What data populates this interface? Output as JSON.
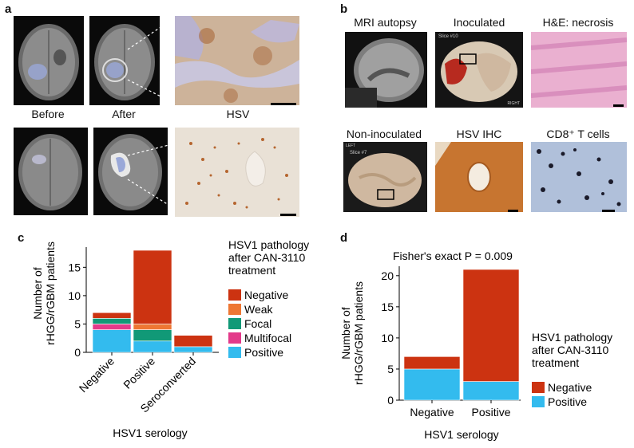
{
  "panel_a": {
    "letter": "a",
    "labels": {
      "before": "Before",
      "after": "After",
      "stain": "HSV"
    }
  },
  "panel_b": {
    "letter": "b",
    "top_labels": [
      "MRI autopsy",
      "Inoculated",
      "H&E: necrosis"
    ],
    "bottom_labels": [
      "Non-inoculated",
      "HSV IHC",
      "CD8⁺ T cells"
    ],
    "slice_text": {
      "inoculated": "Slice #10",
      "inoculated_side": "RIGHT",
      "non_inoculated": "Slice #7",
      "non_inoculated_side": "LEFT"
    }
  },
  "colors": {
    "negative": "#cc3311",
    "weak": "#ee7733",
    "focal": "#119977",
    "multifocal": "#e33a8a",
    "positive": "#33bbee"
  },
  "chart_data": [
    {
      "panel": "c",
      "type": "bar",
      "stacked": true,
      "categories": [
        "Negative",
        "Positive",
        "Seroconverted"
      ],
      "series": [
        {
          "name": "Positive",
          "color_key": "positive",
          "values": [
            4,
            2,
            1
          ]
        },
        {
          "name": "Multifocal",
          "color_key": "multifocal",
          "values": [
            1,
            0,
            0
          ]
        },
        {
          "name": "Focal",
          "color_key": "focal",
          "values": [
            1,
            2,
            0
          ]
        },
        {
          "name": "Weak",
          "color_key": "weak",
          "values": [
            0,
            1,
            0
          ]
        },
        {
          "name": "Negative",
          "color_key": "negative",
          "values": [
            1,
            13,
            2
          ]
        }
      ],
      "legend_order": [
        "Negative",
        "Weak",
        "Focal",
        "Multifocal",
        "Positive"
      ],
      "legend_title": "HSV1 pathology\nafter CAN-3110\ntreatment",
      "legend_placement": "right",
      "xlabel": "HSV1 serology",
      "ylabel": "Number of\nrHGG/rGBM patients",
      "ylim": [
        0,
        18
      ],
      "yticks": [
        0,
        5,
        10,
        15
      ],
      "grid": false
    },
    {
      "panel": "d",
      "type": "bar",
      "stacked": true,
      "title": "Fisher's exact P = 0.009",
      "categories": [
        "Negative",
        "Positive"
      ],
      "series": [
        {
          "name": "Positive",
          "color_key": "positive",
          "values": [
            5,
            3
          ]
        },
        {
          "name": "Negative",
          "color_key": "negative",
          "values": [
            2,
            18
          ]
        }
      ],
      "legend_order": [
        "Negative",
        "Positive"
      ],
      "legend_title": "HSV1 pathology\nafter CAN-3110\ntreatment",
      "legend_placement": "right",
      "xlabel": "HSV1 serology",
      "ylabel": "Number of\nrHGG/rGBM patients",
      "ylim": [
        0,
        21
      ],
      "yticks": [
        0,
        5,
        10,
        15,
        20
      ],
      "grid": false
    }
  ],
  "panel_c_letter": "c",
  "panel_d_letter": "d"
}
